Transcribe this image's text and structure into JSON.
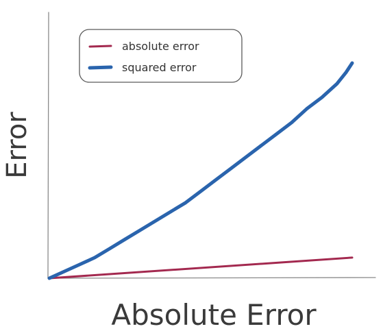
{
  "chart_data": {
    "type": "line",
    "title": "",
    "xlabel": "Absolute Error",
    "ylabel": "Error",
    "xlim": [
      0,
      1
    ],
    "ylim": [
      0,
      1
    ],
    "grid": false,
    "legend_position": "top-left",
    "series": [
      {
        "name": "absolute error",
        "color": "#a3294f",
        "x": [
          0,
          1
        ],
        "y": [
          0,
          0.09
        ]
      },
      {
        "name": "squared error",
        "color": "#2a64ad",
        "x": [
          0,
          0.05,
          0.1,
          0.15,
          0.2,
          0.25,
          0.3,
          0.35,
          0.4,
          0.45,
          0.5,
          0.55,
          0.6,
          0.65,
          0.7,
          0.75,
          0.8,
          0.85,
          0.9,
          0.95,
          0.98,
          1.0
        ],
        "y": [
          0,
          0.03,
          0.06,
          0.09,
          0.13,
          0.17,
          0.21,
          0.25,
          0.29,
          0.33,
          0.38,
          0.43,
          0.48,
          0.53,
          0.58,
          0.63,
          0.68,
          0.74,
          0.79,
          0.85,
          0.9,
          0.94
        ]
      }
    ]
  }
}
